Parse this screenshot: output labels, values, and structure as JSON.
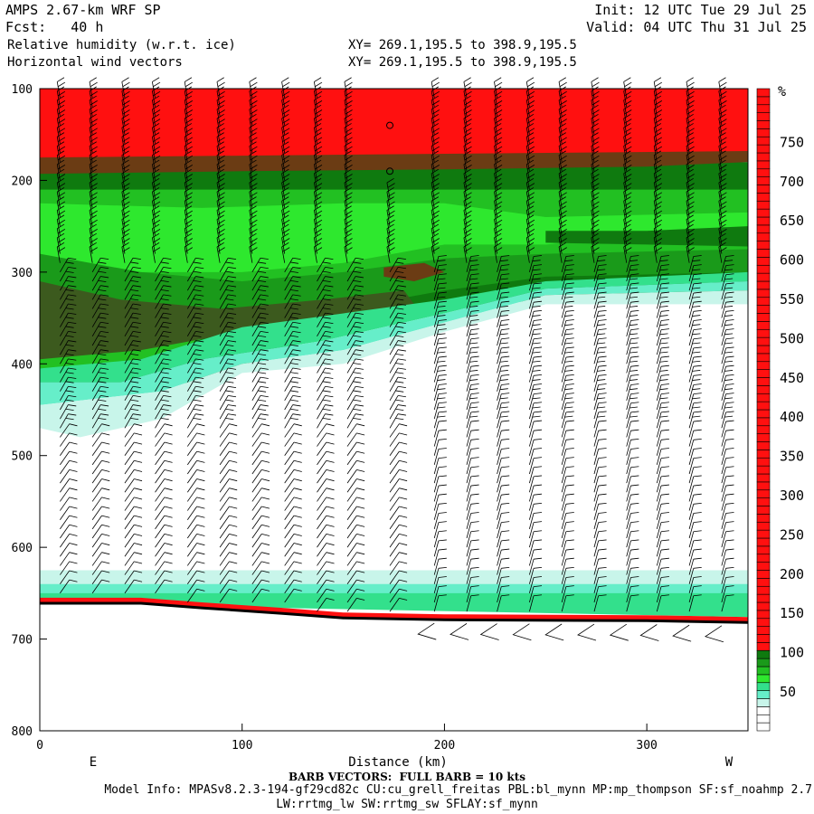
{
  "header": {
    "model": "AMPS 2.67-km WRF SP",
    "fcst": "Fcst:   40 h",
    "init": "Init: 12 UTC Tue 29 Jul 25",
    "valid": "Valid: 04 UTC Thu 31 Jul 25",
    "field1": "Relative humidity (w.r.t. ice)",
    "field2": "Horizontal wind vectors",
    "xy1": "XY= 269.1,195.5 to 398.9,195.5",
    "xy2": "XY= 269.1,195.5 to 398.9,195.5"
  },
  "footer": {
    "barb_note": "BARB VECTORS:  FULL BARB = 10 kts",
    "model_info": "Model Info: MPASv8.2.3-194-gf29cd82c CU:cu_grell_freitas PBL:bl_mynn MP:mp_thompson SF:sf_noahmp 2.7",
    "model_info2": "LW:rrtmg_lw SW:rrtmg_sw SFLAY:sf_mynn"
  },
  "chart_data": {
    "type": "heatmap",
    "xlabel": "Distance (km)",
    "ylabel": "",
    "xlim": [
      0,
      350
    ],
    "ylim": [
      800,
      100
    ],
    "x_ticks": [
      0,
      100,
      200,
      300
    ],
    "y_ticks": [
      100,
      200,
      300,
      400,
      500,
      600,
      700,
      800
    ],
    "left_end_label": "E",
    "right_end_label": "W",
    "colorbar": {
      "unit": "%",
      "tick_labels": [
        50,
        100,
        150,
        200,
        250,
        300,
        350,
        400,
        450,
        500,
        550,
        600,
        650,
        700,
        750
      ],
      "colors": {
        "white": "#ffffff",
        "light_cyan": "#c8f5ea",
        "cyan": "#66eec9",
        "aqua_green": "#33e08c",
        "light_green": "#2ee82e",
        "green": "#22c022",
        "mid_green": "#1a9a1a",
        "dark_green": "#0f7a0f",
        "olive": "#3c5a1e",
        "brown": "#6b3c14",
        "red": "#ff1010"
      }
    },
    "terrain_pressure": [
      {
        "x": 0,
        "p": 661
      },
      {
        "x": 50,
        "p": 661
      },
      {
        "x": 80,
        "p": 666
      },
      {
        "x": 120,
        "p": 672
      },
      {
        "x": 150,
        "p": 677
      },
      {
        "x": 200,
        "p": 679
      },
      {
        "x": 300,
        "p": 680
      },
      {
        "x": 350,
        "p": 682
      }
    ],
    "wind_barb_columns_km": [
      10,
      26,
      42,
      57,
      73,
      89,
      105,
      121,
      137,
      152,
      173,
      195,
      211,
      226,
      242,
      258,
      274,
      290,
      305,
      321,
      337
    ]
  }
}
